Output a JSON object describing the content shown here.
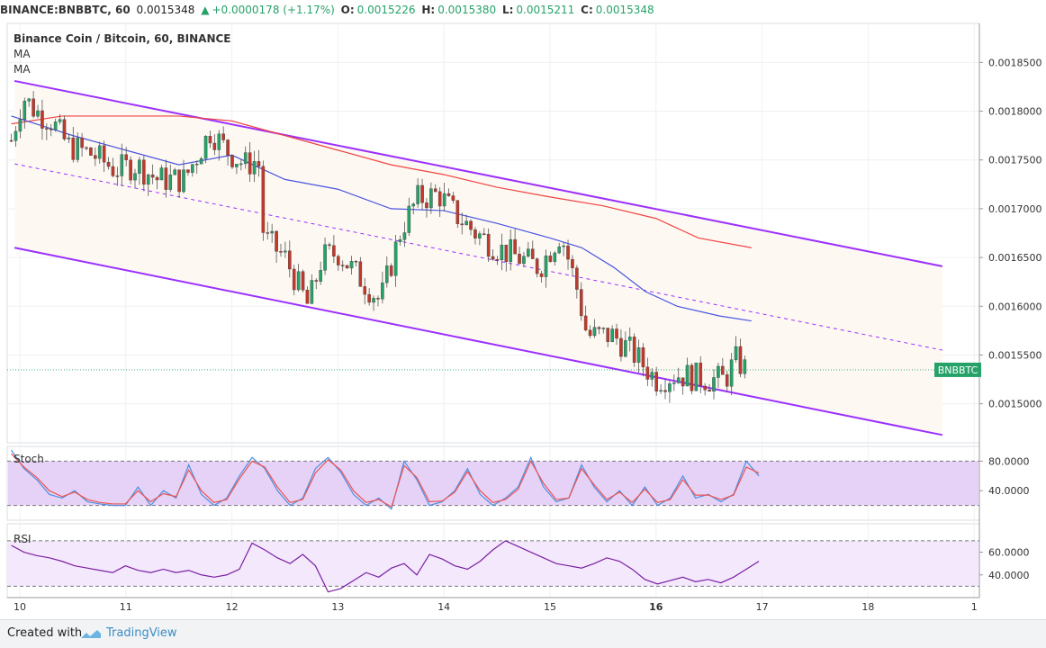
{
  "header": {
    "symbol": "BINANCE:BNBBTC, 60",
    "last": "0.0015348",
    "change": "+0.0000178 (+1.17%)",
    "open_label": "O:",
    "open": "0.0015226",
    "high_label": "H:",
    "high": "0.0015380",
    "low_label": "L:",
    "low": "0.0015211",
    "close_label": "C:",
    "close": "0.0015348"
  },
  "legend": {
    "title": "Binance Coin / Bitcoin, 60, BINANCE",
    "ma1": "MA",
    "ma2": "MA"
  },
  "price_tag": "BNBBTC",
  "footer": {
    "created_with": "Created with",
    "brand": "TradingView"
  },
  "colors": {
    "up": "#26a269",
    "down": "#c0392b",
    "channel": "#9b30ff",
    "ma_fast": "#4a55e0",
    "ma_slow": "#ef4444",
    "stoch_k": "#4a90e2",
    "stoch_d": "#ef5350",
    "rsi": "#7b1fa2",
    "stoch_band": "#e6d2f7",
    "rsi_band": "#f3e8fc",
    "channel_fill": "#fdf9f2"
  },
  "chart_data": [
    {
      "type": "candlestick",
      "title": "Binance Coin / Bitcoin, 60, BINANCE",
      "x_ticks": [
        "10",
        "11",
        "12",
        "13",
        "14",
        "15",
        "16",
        "17",
        "18",
        "1"
      ],
      "y_ticks": [
        "0.0018500",
        "0.0018000",
        "0.0017500",
        "0.0017000",
        "0.0016500",
        "0.0016000",
        "0.0015500",
        "0.0015000"
      ],
      "ylim": [
        0.00146,
        0.00189
      ],
      "xlim_days": [
        9.9,
        19.0
      ],
      "last_price": 0.0015348,
      "ohlc_anchors": [
        [
          9.92,
          0.00177
        ],
        [
          10.03,
          0.001815
        ],
        [
          10.15,
          0.0018
        ],
        [
          10.3,
          0.00179
        ],
        [
          10.45,
          0.001765
        ],
        [
          10.7,
          0.001755
        ],
        [
          10.9,
          0.00174
        ],
        [
          11.1,
          0.001745
        ],
        [
          11.3,
          0.00173
        ],
        [
          11.55,
          0.00173
        ],
        [
          11.8,
          0.00178
        ],
        [
          11.95,
          0.00176
        ],
        [
          12.12,
          0.001745
        ],
        [
          12.25,
          0.00175
        ],
        [
          12.3,
          0.00167
        ],
        [
          12.5,
          0.00165
        ],
        [
          12.72,
          0.0016
        ],
        [
          12.85,
          0.00165
        ],
        [
          13.0,
          0.001655
        ],
        [
          13.2,
          0.00163
        ],
        [
          13.4,
          0.001605
        ],
        [
          13.6,
          0.00168
        ],
        [
          13.75,
          0.00171
        ],
        [
          13.95,
          0.001715
        ],
        [
          14.1,
          0.001695
        ],
        [
          14.3,
          0.001675
        ],
        [
          14.5,
          0.00166
        ],
        [
          14.7,
          0.00165
        ],
        [
          14.9,
          0.00164
        ],
        [
          15.1,
          0.001675
        ],
        [
          15.25,
          0.00162
        ],
        [
          15.35,
          0.00157
        ],
        [
          15.6,
          0.00157
        ],
        [
          15.8,
          0.00155
        ],
        [
          16.0,
          0.001525
        ],
        [
          16.2,
          0.00153
        ],
        [
          16.5,
          0.001525
        ],
        [
          16.65,
          0.001525
        ],
        [
          16.75,
          0.001545
        ],
        [
          16.85,
          0.001535
        ]
      ],
      "ma_fast": [
        [
          9.92,
          0.001795
        ],
        [
          10.5,
          0.001775
        ],
        [
          11.0,
          0.00176
        ],
        [
          11.5,
          0.001745
        ],
        [
          12.0,
          0.001755
        ],
        [
          12.5,
          0.00173
        ],
        [
          13.0,
          0.00172
        ],
        [
          13.5,
          0.0017
        ],
        [
          14.0,
          0.001698
        ],
        [
          14.5,
          0.001685
        ],
        [
          15.0,
          0.00167
        ],
        [
          15.3,
          0.00166
        ],
        [
          15.6,
          0.00164
        ],
        [
          15.9,
          0.001615
        ],
        [
          16.2,
          0.0016
        ],
        [
          16.6,
          0.00159
        ],
        [
          16.9,
          0.001585
        ]
      ],
      "ma_slow": [
        [
          9.92,
          0.001787
        ],
        [
          10.4,
          0.001795
        ],
        [
          10.8,
          0.001795
        ],
        [
          11.5,
          0.001795
        ],
        [
          12.0,
          0.00179
        ],
        [
          12.5,
          0.001775
        ],
        [
          13.0,
          0.00176
        ],
        [
          13.5,
          0.001745
        ],
        [
          14.0,
          0.001735
        ],
        [
          14.5,
          0.001722
        ],
        [
          15.0,
          0.001712
        ],
        [
          15.5,
          0.001703
        ],
        [
          16.0,
          0.00169
        ],
        [
          16.4,
          0.00167
        ],
        [
          16.9,
          0.00166
        ]
      ],
      "channel": {
        "upper": [
          [
            9.95,
            0.001831
          ],
          [
            18.7,
            0.001641
          ]
        ],
        "middle": [
          [
            9.95,
            0.001746
          ],
          [
            18.7,
            0.001555
          ]
        ],
        "lower": [
          [
            9.95,
            0.00166
          ],
          [
            18.7,
            0.001468
          ]
        ]
      }
    },
    {
      "type": "line",
      "title": "Stoch",
      "y_ticks": [
        "80.0000",
        "40.0000"
      ],
      "ylim": [
        0,
        100
      ],
      "band": [
        20,
        80
      ],
      "series": [
        {
          "values": [
            95,
            70,
            55,
            35,
            30,
            40,
            25,
            22,
            20,
            20,
            45,
            20,
            40,
            30,
            75,
            35,
            20,
            30,
            60,
            85,
            70,
            40,
            20,
            30,
            70,
            85,
            65,
            35,
            20,
            30,
            15,
            80,
            55,
            20,
            25,
            40,
            70,
            35,
            20,
            30,
            45,
            85,
            45,
            25,
            30,
            75,
            45,
            25,
            40,
            20,
            45,
            20,
            30,
            60,
            30,
            35,
            25,
            35,
            80,
            60
          ]
        },
        {
          "values": [
            90,
            72,
            58,
            40,
            32,
            38,
            28,
            24,
            22,
            22,
            40,
            25,
            36,
            32,
            68,
            40,
            24,
            28,
            56,
            80,
            72,
            45,
            24,
            28,
            64,
            82,
            68,
            40,
            24,
            28,
            18,
            74,
            58,
            25,
            26,
            38,
            66,
            40,
            24,
            28,
            42,
            80,
            50,
            28,
            30,
            70,
            48,
            28,
            38,
            24,
            42,
            24,
            28,
            55,
            34,
            34,
            28,
            34,
            72,
            64
          ]
        }
      ]
    },
    {
      "type": "line",
      "title": "RSI",
      "y_ticks": [
        "60.0000",
        "40.0000"
      ],
      "ylim": [
        20,
        85
      ],
      "band": [
        30,
        70
      ],
      "series": [
        {
          "values": [
            66,
            60,
            57,
            55,
            52,
            48,
            46,
            44,
            42,
            48,
            44,
            42,
            45,
            42,
            44,
            40,
            38,
            40,
            45,
            68,
            62,
            55,
            50,
            58,
            48,
            25,
            28,
            35,
            42,
            38,
            46,
            50,
            40,
            58,
            54,
            48,
            45,
            52,
            62,
            70,
            65,
            60,
            55,
            50,
            48,
            46,
            50,
            55,
            52,
            45,
            36,
            32,
            35,
            38,
            34,
            36,
            33,
            38,
            45,
            52
          ]
        }
      ]
    }
  ]
}
